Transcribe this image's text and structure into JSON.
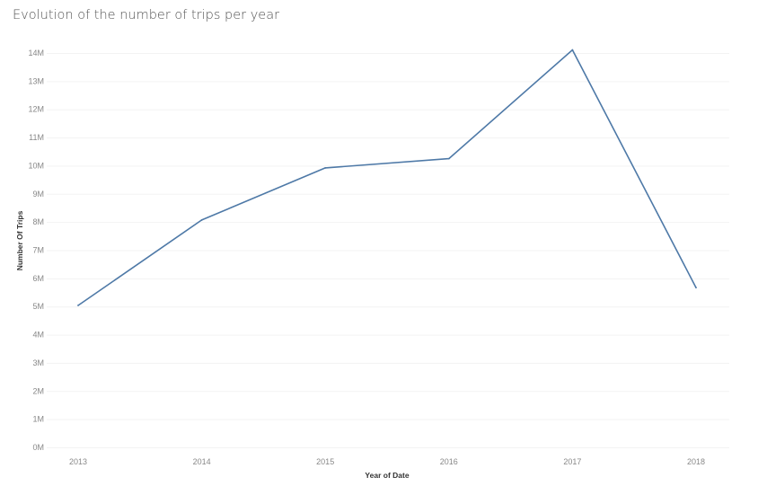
{
  "chart_data": {
    "type": "line",
    "title": "Evolution of the number of trips per year",
    "xlabel": "Year of Date",
    "ylabel": "Number Of Trips",
    "categories": [
      "2013",
      "2014",
      "2015",
      "2016",
      "2017",
      "2018"
    ],
    "series": [
      {
        "values": [
          5040000,
          8070000,
          9920000,
          10250000,
          14110000,
          5670000
        ],
        "color": "#4e79a7"
      }
    ],
    "ylim": [
      0,
      14000000
    ],
    "y_ticks": [
      {
        "value": 0,
        "label": "0M"
      },
      {
        "value": 1000000,
        "label": "1M"
      },
      {
        "value": 2000000,
        "label": "2M"
      },
      {
        "value": 3000000,
        "label": "3M"
      },
      {
        "value": 4000000,
        "label": "4M"
      },
      {
        "value": 5000000,
        "label": "5M"
      },
      {
        "value": 6000000,
        "label": "6M"
      },
      {
        "value": 7000000,
        "label": "7M"
      },
      {
        "value": 8000000,
        "label": "8M"
      },
      {
        "value": 9000000,
        "label": "9M"
      },
      {
        "value": 10000000,
        "label": "10M"
      },
      {
        "value": 11000000,
        "label": "11M"
      },
      {
        "value": 12000000,
        "label": "12M"
      },
      {
        "value": 13000000,
        "label": "13M"
      },
      {
        "value": 14000000,
        "label": "14M"
      }
    ],
    "grid": true,
    "legend": "none"
  }
}
